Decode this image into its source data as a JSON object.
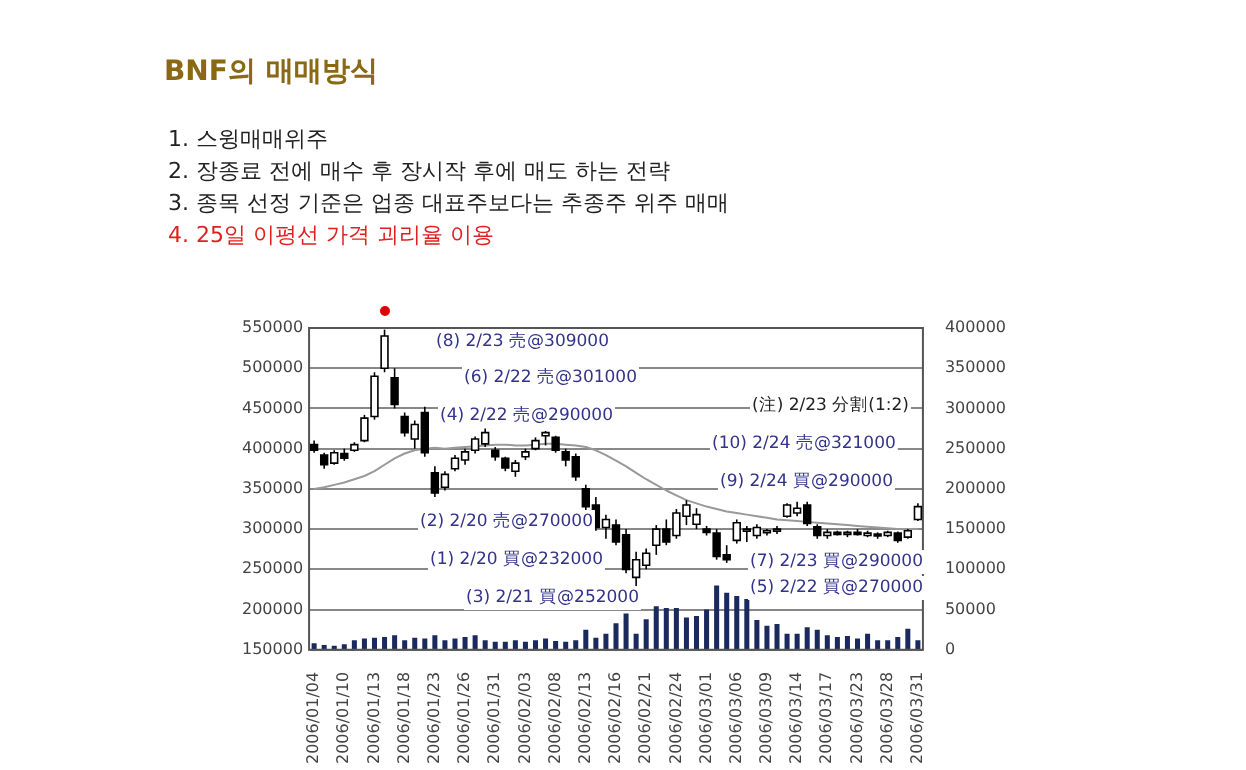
{
  "chart_data": {
    "type": "candlestick",
    "title": "BNF의 매매방식",
    "subtitle": "1. 스윙매매위주\n2. 장종료 전에 매수 후 장시작 후에 매도 하는 전략\n3. 종목 선정 기준은 업종 대표주보다는 추종주 위주 매매\n4. 25일 이평선 가격 괴리율 이용",
    "categories": [
      "2006/01/04",
      null,
      null,
      "2006/01/10",
      null,
      null,
      "2006/01/13",
      null,
      null,
      "2006/01/18",
      null,
      null,
      "2006/01/23",
      null,
      null,
      "2006/01/26",
      null,
      null,
      "2006/01/31",
      null,
      null,
      "2006/02/03",
      null,
      null,
      "2006/02/08",
      null,
      null,
      "2006/02/13",
      null,
      null,
      "2006/02/16",
      null,
      null,
      "2006/02/21",
      null,
      null,
      "2006/02/24",
      null,
      null,
      "2006/03/01",
      null,
      null,
      "2006/03/06",
      null,
      null,
      "2006/03/09",
      null,
      null,
      "2006/03/14",
      null,
      null,
      "2006/03/17",
      null,
      null,
      "2006/03/23",
      null,
      null,
      "2006/03/28",
      null,
      null,
      "2006/03/31"
    ],
    "ohlc": [
      [
        405000,
        410000,
        395000,
        398000
      ],
      [
        392000,
        395000,
        375000,
        380000
      ],
      [
        382000,
        398000,
        380000,
        395000
      ],
      [
        394000,
        400000,
        385000,
        388000
      ],
      [
        398000,
        408000,
        396000,
        405000
      ],
      [
        410000,
        442000,
        408000,
        438000
      ],
      [
        440000,
        495000,
        436000,
        490000
      ],
      [
        500000,
        548000,
        495000,
        540000
      ],
      [
        488000,
        500000,
        450000,
        455000
      ],
      [
        440000,
        445000,
        415000,
        420000
      ],
      [
        412000,
        435000,
        400000,
        430000
      ],
      [
        445000,
        452000,
        390000,
        395000
      ],
      [
        370000,
        378000,
        340000,
        345000
      ],
      [
        352000,
        372000,
        348000,
        368000
      ],
      [
        375000,
        392000,
        372000,
        388000
      ],
      [
        386000,
        400000,
        380000,
        396000
      ],
      [
        398000,
        415000,
        394000,
        412000
      ],
      [
        406000,
        425000,
        402000,
        420000
      ],
      [
        398000,
        402000,
        385000,
        390000
      ],
      [
        388000,
        390000,
        372000,
        376000
      ],
      [
        372000,
        386000,
        365000,
        382000
      ],
      [
        390000,
        400000,
        386000,
        396000
      ],
      [
        400000,
        414000,
        398000,
        410000
      ],
      [
        416000,
        422000,
        404000,
        420000
      ],
      [
        414000,
        416000,
        395000,
        398000
      ],
      [
        396000,
        400000,
        378000,
        386000
      ],
      [
        390000,
        394000,
        360000,
        365000
      ],
      [
        350000,
        355000,
        320000,
        328000
      ],
      [
        330000,
        340000,
        298000,
        302000
      ],
      [
        302000,
        318000,
        288000,
        312000
      ],
      [
        305000,
        312000,
        280000,
        284000
      ],
      [
        293000,
        300000,
        245000,
        250000
      ],
      [
        240000,
        272000,
        228000,
        262000
      ],
      [
        255000,
        276000,
        250000,
        270000
      ],
      [
        280000,
        305000,
        268000,
        300000
      ],
      [
        300000,
        312000,
        280000,
        284000
      ],
      [
        292000,
        325000,
        288000,
        320000
      ],
      [
        316000,
        336000,
        305000,
        330000
      ],
      [
        306000,
        326000,
        300000,
        318000
      ],
      [
        300000,
        304000,
        292000,
        296000
      ],
      [
        295000,
        300000,
        262000,
        266000
      ],
      [
        268000,
        280000,
        258000,
        262000
      ],
      [
        286000,
        312000,
        282000,
        308000
      ],
      [
        298000,
        304000,
        284000,
        300000
      ],
      [
        292000,
        306000,
        288000,
        302000
      ],
      [
        296000,
        300000,
        292000,
        298000
      ],
      [
        298000,
        304000,
        294000,
        300000
      ],
      [
        316000,
        332000,
        314000,
        330000
      ],
      [
        320000,
        334000,
        316000,
        326000
      ],
      [
        330000,
        334000,
        304000,
        307000
      ],
      [
        303000,
        306000,
        288000,
        292000
      ],
      [
        292000,
        300000,
        288000,
        296000
      ],
      [
        296000,
        298000,
        292000,
        294000
      ],
      [
        294000,
        298000,
        290000,
        296000
      ],
      [
        296000,
        300000,
        292000,
        294000
      ],
      [
        292000,
        298000,
        290000,
        295000
      ],
      [
        294000,
        296000,
        288000,
        292000
      ],
      [
        292000,
        298000,
        290000,
        296000
      ],
      [
        295000,
        297000,
        283000,
        286000
      ],
      [
        290000,
        300000,
        288000,
        298000
      ],
      [
        312000,
        332000,
        310000,
        328000
      ]
    ],
    "series": [
      {
        "type": "bar",
        "axis": "y2",
        "color": "#1b2a5e",
        "values": [
          8000,
          6000,
          5000,
          7000,
          12000,
          14000,
          15000,
          16000,
          18000,
          12000,
          15000,
          14000,
          18000,
          12000,
          14000,
          16000,
          18000,
          12000,
          10000,
          10000,
          12000,
          10000,
          12000,
          14000,
          11000,
          10000,
          12000,
          25000,
          15000,
          20000,
          33000,
          45000,
          20000,
          38000,
          54000,
          52000,
          52000,
          40000,
          42000,
          50000,
          80000,
          71000,
          67000,
          63000,
          37000,
          30000,
          32000,
          20000,
          20000,
          28000,
          25000,
          18000,
          16000,
          17000,
          14000,
          20000,
          12000,
          12000,
          16000,
          26000,
          12000
        ]
      },
      {
        "type": "line",
        "color": "#999999",
        "values": [
          350000,
          352000,
          355000,
          358000,
          362000,
          366000,
          372000,
          380000,
          388000,
          394000,
          398000,
          400000,
          401000,
          400000,
          401000,
          402000,
          403000,
          404000,
          405000,
          405000,
          404000,
          404000,
          405000,
          406000,
          406000,
          405000,
          404000,
          402000,
          398000,
          392000,
          385000,
          378000,
          370000,
          362000,
          355000,
          348000,
          342000,
          336000,
          332000,
          328000,
          325000,
          322000,
          320000,
          318000,
          316000,
          314000,
          312000,
          311000,
          310000,
          309000,
          308000,
          307000,
          306000,
          305000,
          304000,
          303000,
          302000,
          301000,
          300000,
          300000,
          300000
        ]
      }
    ],
    "ylim": [
      150000,
      550000
    ],
    "yticks": [
      150000,
      200000,
      250000,
      300000,
      350000,
      400000,
      450000,
      500000,
      550000
    ],
    "y2lim": [
      0,
      400000
    ],
    "y2ticks": [
      0,
      50000,
      100000,
      150000,
      200000,
      250000,
      300000,
      350000,
      400000
    ],
    "grid": "y",
    "annotations": [
      "(注) 2/23 分割(1:2)",
      "(8) 2/23 売@309000",
      "(6) 2/22 売@301000",
      "(4) 2/22 売@290000",
      "(10) 2/24 売@321000",
      "(9) 2/24 買@290000",
      "(2) 2/20 売@270000",
      "(7) 2/23 買@290000",
      "(1) 2/20 買@232000",
      "(5) 2/22 買@270000",
      "(3) 2/21 買@252000"
    ]
  }
}
